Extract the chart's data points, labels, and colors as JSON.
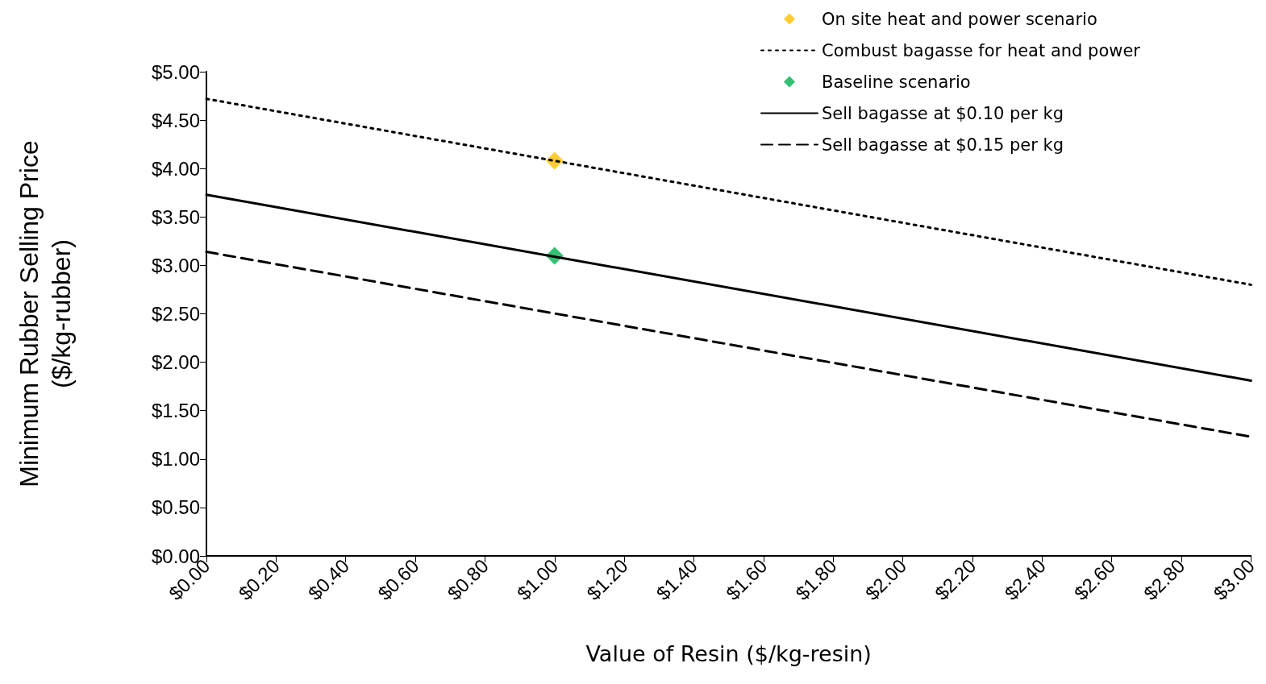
{
  "chart_data": {
    "type": "line",
    "xlabel": "Value of Resin ($/kg-resin)",
    "ylabel": "Minimum Rubber Selling Price\n($/kg-rubber)",
    "xlim": [
      0,
      3
    ],
    "ylim": [
      0,
      5
    ],
    "xticks": [
      {
        "value": 0,
        "label": "$0.00"
      },
      {
        "value": 0.2,
        "label": "$0.20"
      },
      {
        "value": 0.4,
        "label": "$0.40"
      },
      {
        "value": 0.6,
        "label": "$0.60"
      },
      {
        "value": 0.8,
        "label": "$0.80"
      },
      {
        "value": 1,
        "label": "$1.00"
      },
      {
        "value": 1.2,
        "label": "$1.20"
      },
      {
        "value": 1.4,
        "label": "$1.40"
      },
      {
        "value": 1.6,
        "label": "$1.60"
      },
      {
        "value": 1.8,
        "label": "$1.80"
      },
      {
        "value": 2,
        "label": "$2.00"
      },
      {
        "value": 2.2,
        "label": "$2.20"
      },
      {
        "value": 2.4,
        "label": "$2.40"
      },
      {
        "value": 2.6,
        "label": "$2.60"
      },
      {
        "value": 2.8,
        "label": "$2.80"
      },
      {
        "value": 3,
        "label": "$3.00"
      }
    ],
    "yticks": [
      {
        "value": 0,
        "label": "$0.00"
      },
      {
        "value": 0.5,
        "label": "$0.50"
      },
      {
        "value": 1,
        "label": "$1.00"
      },
      {
        "value": 1.5,
        "label": "$1.50"
      },
      {
        "value": 2,
        "label": "$2.00"
      },
      {
        "value": 2.5,
        "label": "$2.50"
      },
      {
        "value": 3,
        "label": "$3.00"
      },
      {
        "value": 3.5,
        "label": "$3.50"
      },
      {
        "value": 4,
        "label": "$4.00"
      },
      {
        "value": 4.5,
        "label": "$4.50"
      },
      {
        "value": 5,
        "label": "$5.00"
      }
    ],
    "grid": false,
    "legend": "top right",
    "series": [
      {
        "name": "On site heat and power scenario",
        "type": "scatter",
        "marker": "diamond",
        "color": "#ffc000",
        "x": [
          1
        ],
        "values": [
          4.08
        ]
      },
      {
        "name": "Combust bagasse for heat and power",
        "type": "line",
        "line_style": "dotted",
        "color": "#000000",
        "x": [
          0,
          3
        ],
        "values": [
          4.72,
          2.8
        ]
      },
      {
        "name": "Baseline scenario",
        "type": "scatter",
        "marker": "diamond",
        "color": "#00b050",
        "x": [
          1
        ],
        "values": [
          3.1
        ]
      },
      {
        "name": "Sell bagasse at $0.10 per kg",
        "type": "line",
        "line_style": "solid",
        "color": "#000000",
        "x": [
          0,
          3
        ],
        "values": [
          3.73,
          1.81
        ]
      },
      {
        "name": "Sell bagasse at $0.15 per kg",
        "type": "line",
        "line_style": "dashed",
        "color": "#000000",
        "x": [
          0,
          3
        ],
        "values": [
          3.14,
          1.23
        ]
      }
    ]
  }
}
